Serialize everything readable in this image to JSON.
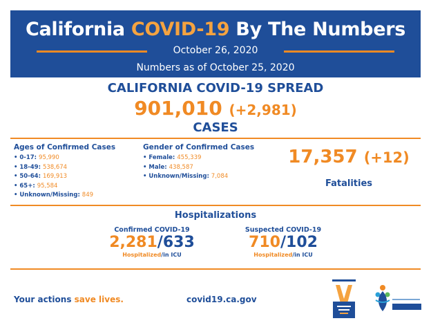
{
  "banner": {
    "title_pre": "California ",
    "title_highlight": "COVID-19",
    "title_post": " By The Numbers",
    "date": "October 26, 2020",
    "as_of": "Numbers as of October 25, 2020"
  },
  "spread": {
    "heading": "CALIFORNIA COVID-19 SPREAD",
    "cases_total": "901,010",
    "cases_delta": "(+2,981)",
    "cases_label": "CASES"
  },
  "ages": {
    "heading": "Ages of Confirmed Cases",
    "items": [
      {
        "label": "• 0-17: ",
        "value": "95,990"
      },
      {
        "label": "• 18-49: ",
        "value": "538,674"
      },
      {
        "label": "• 50-64: ",
        "value": "169,913"
      },
      {
        "label": "• 65+: ",
        "value": "95,584"
      },
      {
        "label": "• Unknown/Missing: ",
        "value": "849"
      }
    ]
  },
  "gender": {
    "heading": "Gender of Confirmed Cases",
    "items": [
      {
        "label": "• Female: ",
        "value": "455,339"
      },
      {
        "label": "• Male: ",
        "value": "438,587"
      },
      {
        "label": "• Unknown/Missing: ",
        "value": "7,084"
      }
    ]
  },
  "fatalities": {
    "total": "17,357",
    "delta": "(+12)",
    "label": "Fatalities"
  },
  "hospitalizations": {
    "heading": "Hospitalizations",
    "confirmed": {
      "label": "Confirmed COVID-19",
      "hospitalized": "2,281",
      "sep": "/",
      "icu": "633",
      "sub_hosp": "Hospitalized",
      "sub_icu": "/in ICU"
    },
    "suspected": {
      "label": "Suspected COVID-19",
      "hospitalized": "710",
      "sep": "/",
      "icu": "102",
      "sub_hosp": "Hospitalized",
      "sub_icu": "/in ICU"
    }
  },
  "footer": {
    "tagline_pre": "Your actions ",
    "tagline_highlight": "save lives.",
    "url": "covid19.ca.gov"
  },
  "colors": {
    "brand_blue": "#1f4e99",
    "accent_orange": "#f08a24"
  },
  "icons": {
    "california_all_logo": "california-all-logo",
    "public_health_logo": "public-health-logo"
  }
}
